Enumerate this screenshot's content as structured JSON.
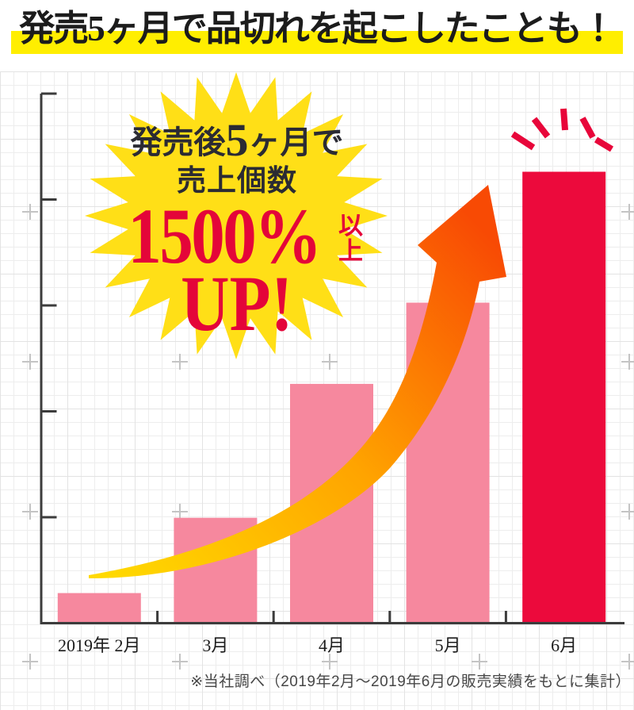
{
  "heading": {
    "text": "発売5ヶ月で品切れを起こしたことも！"
  },
  "burst": {
    "line1_prefix": "発売後",
    "line1_number": "5",
    "line1_suffix": "ヶ月で",
    "line2": "売上個数",
    "line3_value": "1500%",
    "line3_suffix": "以上",
    "line4": "UP!"
  },
  "chart_data": {
    "type": "bar",
    "categories": [
      "2019年 2月",
      "3月",
      "4月",
      "5月",
      "6月"
    ],
    "values": [
      100,
      350,
      795,
      1065,
      1500
    ],
    "values_basis": "売上個数の相対値（2019年2月=100とした推定、バー高さより読み取り）",
    "ylim": [
      0,
      1500
    ],
    "y_axis_tick_count": 5,
    "y_axis_labels": [],
    "grid": true,
    "legend": false,
    "highlight_index": 4,
    "annotation": "発売後5ヶ月で売上個数1500%以上UP!",
    "source_note": "※当社調べ（2019年2月～2019年6月の販売実績をもとに集計）"
  },
  "footer": {
    "note": "※当社調べ（2019年2月～2019年6月の販売実績をもとに集計）"
  },
  "colors": {
    "highlight_yellow": "#ffee00",
    "burst_yellow": "#ffdf17",
    "burst_ink": "#2b2b33",
    "accent_red": "#e40539",
    "bar_pink": "#f6889e",
    "bar_red": "#ec0a3c",
    "ray_red": "#e8063a",
    "arrow_start": "#ffd900",
    "arrow_mid": "#ffa400",
    "arrow_end": "#f84a04",
    "axis_gray": "#3c3c3c",
    "ink": "#1c1c1c",
    "footer_gray": "#474747"
  }
}
